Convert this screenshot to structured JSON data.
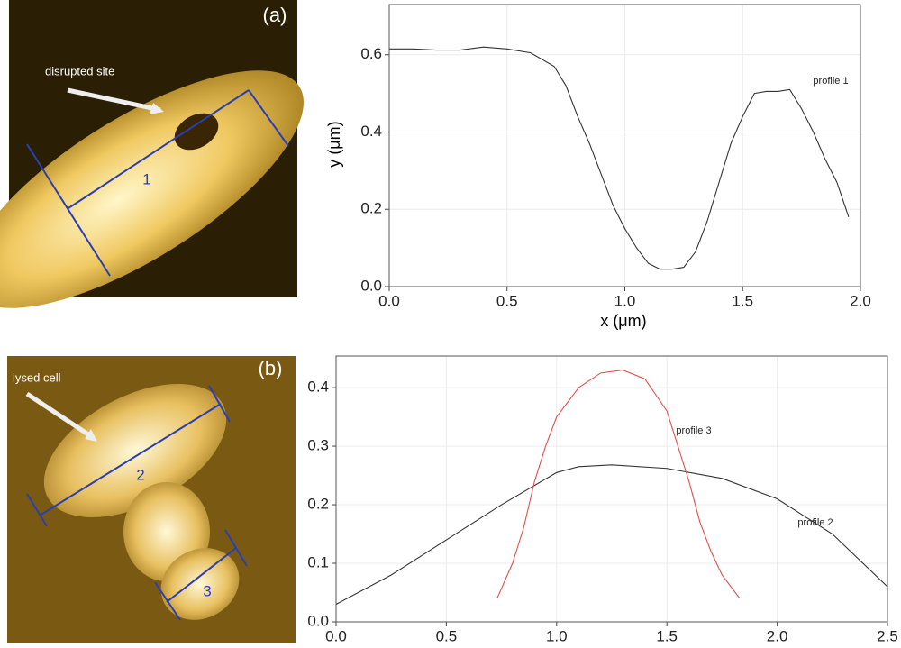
{
  "chart_data": [
    {
      "type": "line",
      "x_label": "x (μm)",
      "y_label": "y (μm)",
      "xlim": [
        0,
        2.0
      ],
      "ylim": [
        0,
        0.73
      ],
      "xticks": [
        {
          "value": 0,
          "label": "0.0"
        },
        {
          "value": 0.5,
          "label": "0.5"
        },
        {
          "value": 1.0,
          "label": "1.0"
        },
        {
          "value": 1.5,
          "label": "1.5"
        },
        {
          "value": 2.0,
          "label": "2.0"
        }
      ],
      "yticks": [
        {
          "value": 0,
          "label": "0.0"
        },
        {
          "value": 0.2,
          "label": "0.2"
        },
        {
          "value": 0.4,
          "label": "0.4"
        },
        {
          "value": 0.6,
          "label": "0.6"
        }
      ],
      "grid": true,
      "series": [
        {
          "name": "profile 1",
          "color": "#333333",
          "x": [
            0,
            0.1,
            0.2,
            0.3,
            0.4,
            0.5,
            0.6,
            0.7,
            0.75,
            0.8,
            0.85,
            0.9,
            0.95,
            1.0,
            1.05,
            1.1,
            1.15,
            1.2,
            1.25,
            1.3,
            1.35,
            1.4,
            1.45,
            1.5,
            1.55,
            1.6,
            1.65,
            1.7,
            1.75,
            1.8,
            1.85,
            1.9,
            1.95
          ],
          "values": [
            0.615,
            0.615,
            0.612,
            0.612,
            0.62,
            0.615,
            0.605,
            0.57,
            0.52,
            0.44,
            0.37,
            0.29,
            0.21,
            0.15,
            0.1,
            0.06,
            0.045,
            0.045,
            0.05,
            0.09,
            0.17,
            0.27,
            0.37,
            0.44,
            0.5,
            0.505,
            0.505,
            0.51,
            0.46,
            0.4,
            0.33,
            0.27,
            0.18
          ]
        }
      ]
    },
    {
      "type": "line",
      "xlim": [
        0,
        2.5
      ],
      "ylim": [
        0,
        0.454
      ],
      "xticks": [
        {
          "value": 0,
          "label": "0.0"
        },
        {
          "value": 0.5,
          "label": "0.5"
        },
        {
          "value": 1.0,
          "label": "1.0"
        },
        {
          "value": 1.5,
          "label": "1.5"
        },
        {
          "value": 2.0,
          "label": "2.0"
        },
        {
          "value": 2.5,
          "label": "2.5"
        }
      ],
      "yticks": [
        {
          "value": 0,
          "label": "0.0"
        },
        {
          "value": 0.1,
          "label": "0.1"
        },
        {
          "value": 0.2,
          "label": "0.2"
        },
        {
          "value": 0.3,
          "label": "0.3"
        },
        {
          "value": 0.4,
          "label": "0.4"
        }
      ],
      "grid": true,
      "series": [
        {
          "name": "profile 2",
          "color": "#333333",
          "x": [
            0,
            0.25,
            0.5,
            0.75,
            1.0,
            1.1,
            1.25,
            1.5,
            1.75,
            2.0,
            2.25,
            2.5
          ],
          "values": [
            0.03,
            0.08,
            0.14,
            0.2,
            0.255,
            0.265,
            0.268,
            0.262,
            0.245,
            0.21,
            0.15,
            0.06
          ]
        },
        {
          "name": "profile 3",
          "color": "#e05050",
          "x": [
            0.73,
            0.8,
            0.85,
            0.9,
            0.95,
            1.0,
            1.1,
            1.2,
            1.3,
            1.4,
            1.5,
            1.55,
            1.6,
            1.65,
            1.7,
            1.75,
            1.83
          ],
          "values": [
            0.04,
            0.1,
            0.16,
            0.24,
            0.3,
            0.35,
            0.4,
            0.425,
            0.43,
            0.415,
            0.36,
            0.3,
            0.24,
            0.17,
            0.12,
            0.08,
            0.04
          ]
        }
      ]
    }
  ],
  "images": [
    {
      "panel": "(a)",
      "annotation": "disrupted site",
      "line_labels": [
        "1"
      ]
    },
    {
      "panel": "(b)",
      "annotation": "lysed cell",
      "line_labels": [
        "2",
        "3"
      ]
    }
  ]
}
